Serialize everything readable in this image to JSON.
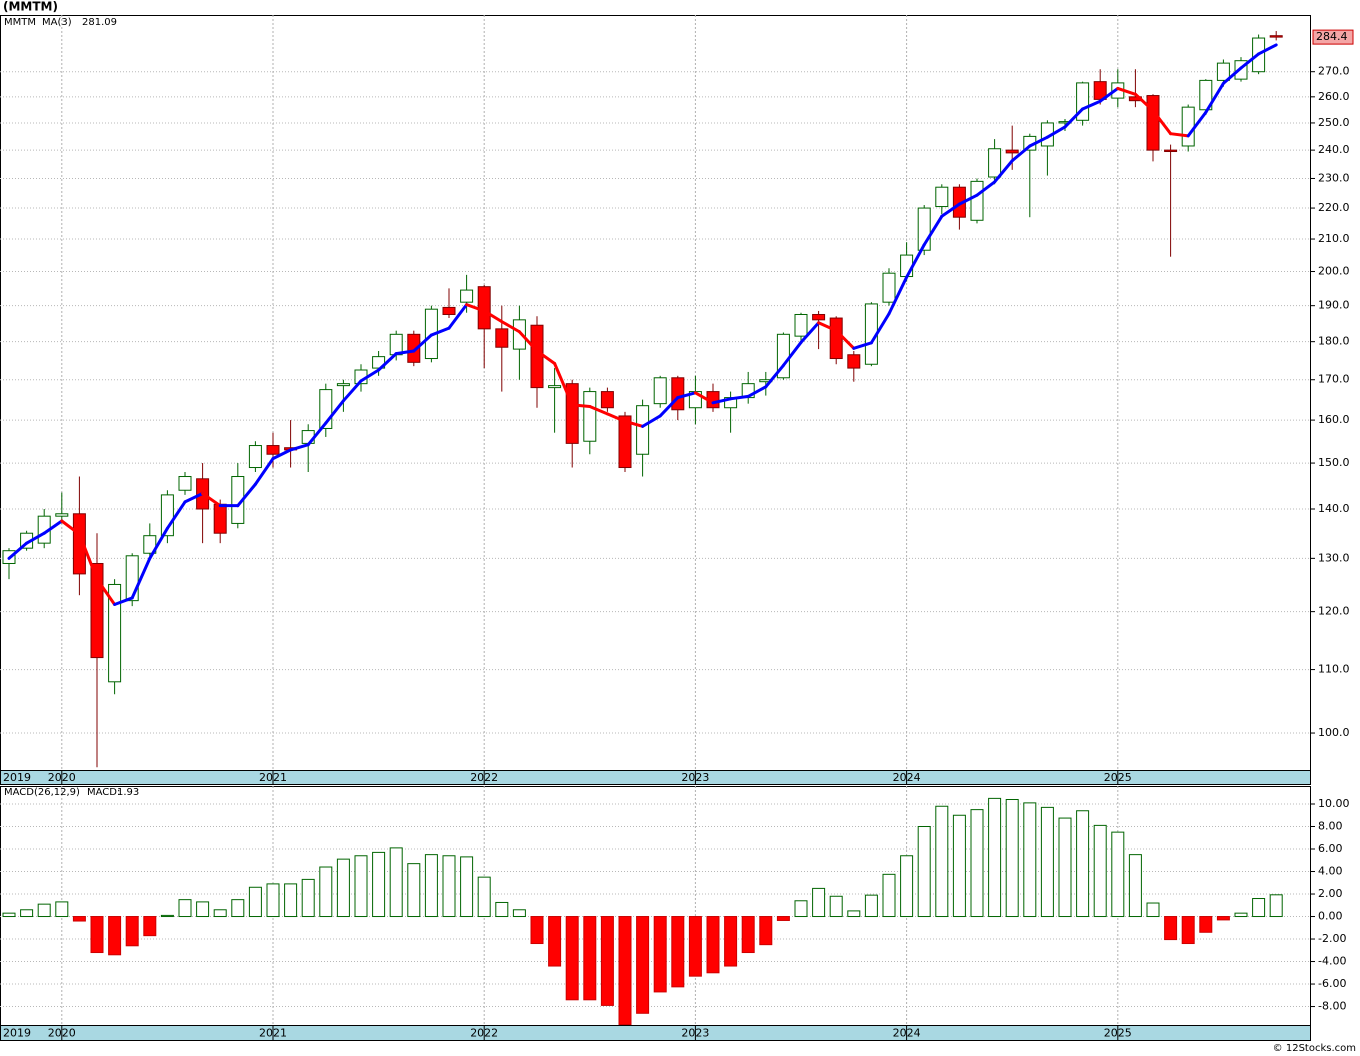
{
  "title": "(MMTM)",
  "footer": "© 12Stocks.com",
  "chart_data": [
    {
      "type": "candlestick",
      "log_scale": true,
      "grid": true,
      "up_color": "#006400",
      "down_color": "#ff0000",
      "ma_up_color": "#0000ff",
      "ma_down_color": "#ff0000",
      "categories": [
        "2019",
        null,
        null,
        "2020",
        null,
        null,
        null,
        null,
        null,
        null,
        null,
        null,
        null,
        null,
        null,
        "2021",
        null,
        null,
        null,
        null,
        null,
        null,
        null,
        null,
        null,
        null,
        null,
        "2022",
        null,
        null,
        null,
        null,
        null,
        null,
        null,
        null,
        null,
        null,
        null,
        "2023",
        null,
        null,
        null,
        null,
        null,
        null,
        null,
        null,
        null,
        null,
        null,
        "2024",
        null,
        null,
        null,
        null,
        null,
        null,
        null,
        null,
        null,
        null,
        null,
        "2025",
        null,
        null,
        null,
        null,
        null,
        null,
        null,
        null,
        null
      ],
      "series": [
        {
          "name": "MMTM",
          "color": "#006400",
          "open": [
            129,
            132,
            133,
            138.5,
            139,
            129,
            108,
            122,
            131,
            134.5,
            144,
            146.5,
            141,
            137,
            149,
            154,
            153.5,
            154.5,
            158,
            168.5,
            169,
            173,
            176.5,
            182,
            175.5,
            189.5,
            191,
            195.5,
            183.5,
            178,
            184.5,
            168,
            169,
            155,
            167,
            161,
            152,
            164,
            170.5,
            163,
            167,
            163,
            165.5,
            169.5,
            170.5,
            181.5,
            187.5,
            186.5,
            176.5,
            174,
            191,
            198.5,
            206.5,
            220.5,
            227,
            216,
            230.5,
            240,
            240,
            241.5,
            250,
            251,
            266,
            259.5,
            260,
            260.5,
            240,
            241.5,
            255,
            266.5,
            267,
            270,
            285
          ],
          "high": [
            132,
            135.5,
            140,
            143.5,
            147,
            135,
            126,
            131,
            137,
            144,
            148,
            150,
            142,
            150,
            155,
            157,
            160,
            159,
            169,
            170,
            174,
            177.5,
            183,
            183,
            190,
            195,
            199,
            196,
            190,
            190,
            187,
            173,
            170,
            168,
            168,
            162,
            165,
            171,
            171,
            171,
            169,
            167,
            172,
            172,
            182.5,
            188,
            188.5,
            187,
            177.5,
            191,
            201,
            209,
            221,
            228,
            228,
            230,
            244,
            249,
            246,
            251,
            251.5,
            266,
            271,
            271,
            271,
            261,
            242,
            257,
            267,
            275,
            276,
            285.5,
            287
          ],
          "low": [
            126,
            131.5,
            132,
            137,
            123,
            95,
            106,
            121,
            130,
            133,
            143,
            133,
            133,
            136,
            148,
            149,
            149,
            148,
            156,
            162,
            167,
            171,
            175,
            173.5,
            174.5,
            186.5,
            188,
            173,
            167,
            170,
            163,
            157,
            149,
            152,
            162,
            148,
            147,
            163,
            160,
            159,
            162,
            157,
            164,
            166,
            170,
            180,
            178,
            174,
            169.5,
            173.5,
            190,
            197,
            205,
            218,
            213,
            215,
            228,
            233,
            217,
            231,
            247,
            249,
            257,
            256,
            256,
            236,
            204.5,
            239.5,
            253,
            264,
            266,
            269,
            283
          ],
          "close": [
            131.5,
            135,
            138.5,
            139,
            127,
            112,
            125,
            130.5,
            134.5,
            143,
            147,
            140,
            135,
            147,
            154,
            152,
            153,
            157.5,
            167.5,
            169,
            172.5,
            176,
            182,
            174.5,
            189,
            187.5,
            194.5,
            183.5,
            178.5,
            186,
            168,
            168.5,
            154.5,
            167,
            163,
            149,
            163.5,
            170.5,
            162.5,
            167,
            163,
            165.5,
            169,
            170,
            182,
            187.5,
            186,
            175.5,
            173,
            190.5,
            199.5,
            205,
            220,
            227,
            217,
            229,
            240.5,
            239,
            245,
            250,
            250.5,
            265.5,
            259,
            265.5,
            258.5,
            240,
            239.5,
            256,
            266.5,
            273.5,
            274.5,
            284,
            284.4
          ]
        },
        {
          "name": "MA(3)",
          "color": "#0000ff",
          "values": [
            130,
            133,
            135,
            137.5,
            134.8,
            126,
            121.3,
            122.5,
            130,
            136,
            141.5,
            143.3,
            140.7,
            140.7,
            145.3,
            151,
            153,
            154.2,
            159.3,
            164.7,
            169.7,
            172.5,
            176.8,
            177.5,
            181.8,
            183.7,
            190.3,
            188.5,
            185.5,
            182.7,
            177.5,
            174.2,
            163.7,
            163.3,
            161.5,
            159.7,
            158.5,
            161,
            165.5,
            166.7,
            164.2,
            165.2,
            165.8,
            168.2,
            173.7,
            179.8,
            185.2,
            183,
            178.2,
            179.7,
            187.7,
            198.3,
            208.2,
            217.3,
            221.3,
            224.3,
            228.8,
            236.2,
            241.5,
            244.7,
            248.5,
            255.3,
            258.3,
            263.3,
            261,
            254.7,
            246,
            245.2,
            254,
            265.3,
            271.5,
            277.3,
            281.09
          ]
        }
      ],
      "ylim": [
        94.6,
        294
      ],
      "yticks": [
        {
          "value": 100,
          "label": "100.0"
        },
        {
          "value": 110,
          "label": "110.0"
        },
        {
          "value": 120,
          "label": "120.0"
        },
        {
          "value": 130,
          "label": "130.0"
        },
        {
          "value": 140,
          "label": "140.0"
        },
        {
          "value": 150,
          "label": "150.0"
        },
        {
          "value": 160,
          "label": "160.0"
        },
        {
          "value": 170,
          "label": "170.0"
        },
        {
          "value": 180,
          "label": "180.0"
        },
        {
          "value": 190,
          "label": "190.0"
        },
        {
          "value": 200,
          "label": "200.0"
        },
        {
          "value": 210,
          "label": "210.0"
        },
        {
          "value": 220,
          "label": "220.0"
        },
        {
          "value": 230,
          "label": "230.0"
        },
        {
          "value": 240,
          "label": "240.0"
        },
        {
          "value": 250,
          "label": "250.0"
        },
        {
          "value": 260,
          "label": "260.0"
        },
        {
          "value": 270,
          "label": "270.0"
        }
      ]
    },
    {
      "type": "bar",
      "grid": true,
      "up_color": "#006400",
      "down_color": "#ff0000",
      "categories": [
        "2019",
        null,
        null,
        "2020",
        null,
        null,
        null,
        null,
        null,
        null,
        null,
        null,
        null,
        null,
        null,
        "2021",
        null,
        null,
        null,
        null,
        null,
        null,
        null,
        null,
        null,
        null,
        null,
        "2022",
        null,
        null,
        null,
        null,
        null,
        null,
        null,
        null,
        null,
        null,
        null,
        "2023",
        null,
        null,
        null,
        null,
        null,
        null,
        null,
        null,
        null,
        null,
        null,
        "2024",
        null,
        null,
        null,
        null,
        null,
        null,
        null,
        null,
        null,
        null,
        null,
        "2025",
        null,
        null,
        null,
        null,
        null,
        null,
        null,
        null,
        null
      ],
      "series": [
        {
          "name": "MACD(26,12,9)",
          "last_value_prefix": "MACD:",
          "color": "#006400",
          "values": [
            0.3,
            0.6,
            1.1,
            1.3,
            -0.4,
            -3.2,
            -3.4,
            -2.6,
            -1.7,
            0.1,
            1.5,
            1.3,
            0.6,
            1.5,
            2.6,
            2.9,
            2.9,
            3.3,
            4.4,
            5.1,
            5.4,
            5.7,
            6.1,
            4.7,
            5.5,
            5.4,
            5.3,
            3.5,
            1.25,
            0.6,
            -2.4,
            -4.4,
            -7.4,
            -7.4,
            -7.9,
            -9.6,
            -8.6,
            -6.7,
            -6.25,
            -5.3,
            -5,
            -4.4,
            -3.2,
            -2.5,
            -0.35,
            1.4,
            2.5,
            1.8,
            0.5,
            1.9,
            3.75,
            5.4,
            8,
            9.8,
            9,
            9.5,
            10.5,
            10.4,
            10.1,
            9.7,
            8.75,
            9.4,
            8.1,
            7.5,
            5.5,
            1.2,
            -2.05,
            -2.4,
            -1.4,
            -0.3,
            0.3,
            1.6,
            1.93
          ]
        }
      ],
      "ylim": [
        -9.64,
        11.6
      ],
      "yticks": [
        {
          "value": 10,
          "label": "10.00"
        },
        {
          "value": 8,
          "label": "8.00"
        },
        {
          "value": 6,
          "label": "6.00"
        },
        {
          "value": 4,
          "label": "4.00"
        },
        {
          "value": 2,
          "label": "2.00"
        },
        {
          "value": 0,
          "label": "0.00"
        },
        {
          "value": -2,
          "label": "-2.00"
        },
        {
          "value": -4,
          "label": "-4.00"
        },
        {
          "value": -6,
          "label": "-6.00"
        },
        {
          "value": -8,
          "label": "-8.00"
        }
      ]
    }
  ]
}
